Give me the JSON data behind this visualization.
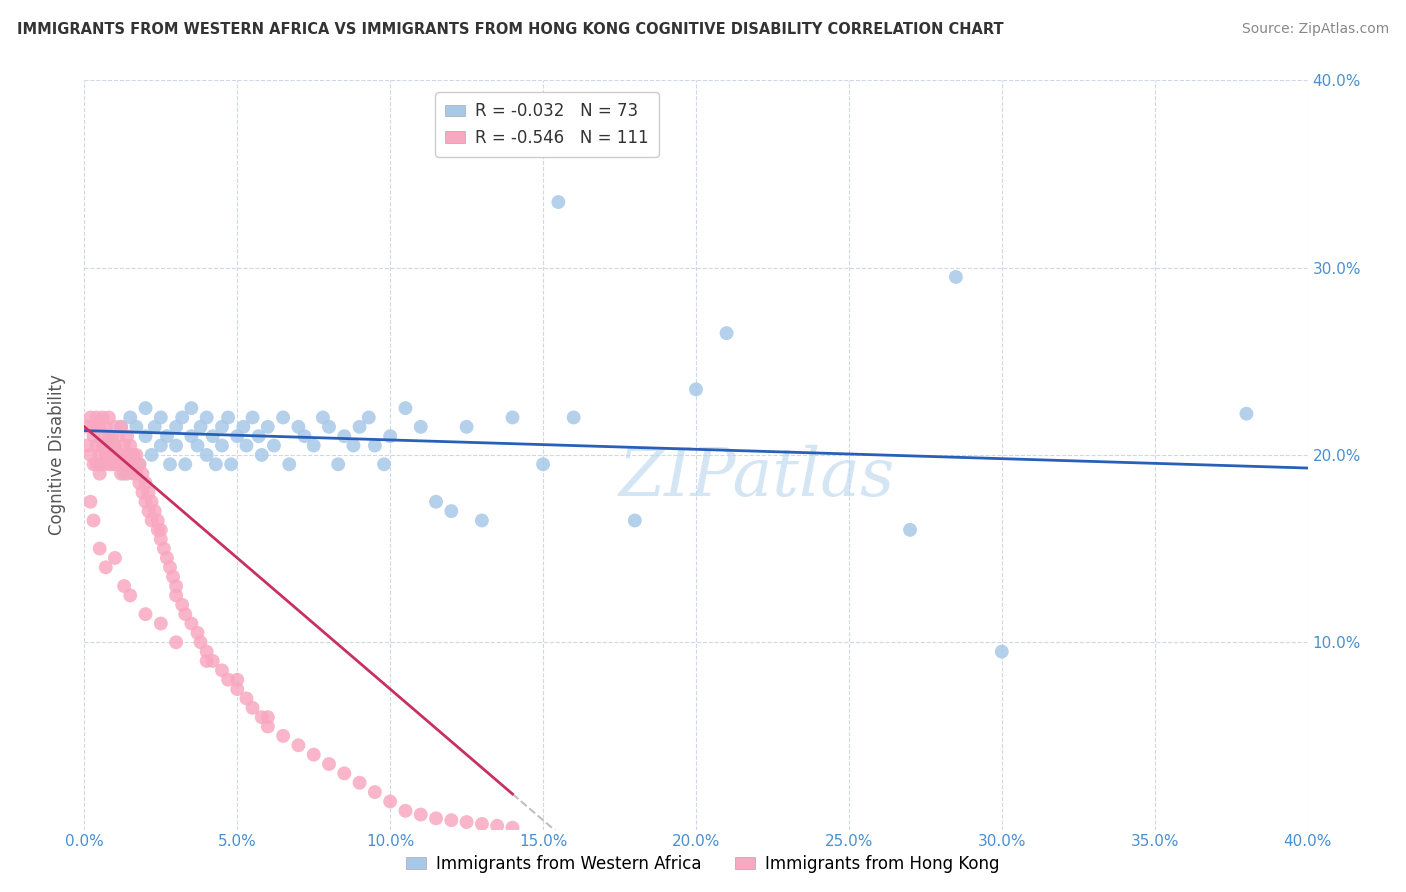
{
  "title": "IMMIGRANTS FROM WESTERN AFRICA VS IMMIGRANTS FROM HONG KONG COGNITIVE DISABILITY CORRELATION CHART",
  "source": "Source: ZipAtlas.com",
  "ylabel": "Cognitive Disability",
  "xlim": [
    0.0,
    0.4
  ],
  "ylim": [
    0.0,
    0.4
  ],
  "xtick_values": [
    0.0,
    0.05,
    0.1,
    0.15,
    0.2,
    0.25,
    0.3,
    0.35,
    0.4
  ],
  "ytick_values": [
    0.1,
    0.2,
    0.3,
    0.4
  ],
  "color_blue": "#a8c8e8",
  "color_pink": "#f8a8c0",
  "line_blue": "#2860b8",
  "line_pink": "#c83060",
  "line_gray": "#c0c0c0",
  "legend_r1": "R = -0.032",
  "legend_n1": "N = 73",
  "legend_r2": "R = -0.546",
  "legend_n2": "N = 111",
  "watermark": "ZIPatlas",
  "label1": "Immigrants from Western Africa",
  "label2": "Immigrants from Hong Kong",
  "blue_x": [
    0.005,
    0.008,
    0.01,
    0.012,
    0.013,
    0.015,
    0.015,
    0.017,
    0.018,
    0.02,
    0.02,
    0.022,
    0.023,
    0.025,
    0.025,
    0.027,
    0.028,
    0.03,
    0.03,
    0.032,
    0.033,
    0.035,
    0.035,
    0.037,
    0.038,
    0.04,
    0.04,
    0.042,
    0.043,
    0.045,
    0.045,
    0.047,
    0.048,
    0.05,
    0.052,
    0.053,
    0.055,
    0.057,
    0.058,
    0.06,
    0.062,
    0.065,
    0.067,
    0.07,
    0.072,
    0.075,
    0.078,
    0.08,
    0.083,
    0.085,
    0.088,
    0.09,
    0.093,
    0.095,
    0.098,
    0.1,
    0.105,
    0.11,
    0.115,
    0.12,
    0.125,
    0.13,
    0.14,
    0.15,
    0.16,
    0.18,
    0.2,
    0.21,
    0.27,
    0.3,
    0.155,
    0.285,
    0.38
  ],
  "blue_y": [
    0.195,
    0.21,
    0.205,
    0.215,
    0.19,
    0.22,
    0.2,
    0.215,
    0.195,
    0.21,
    0.225,
    0.2,
    0.215,
    0.205,
    0.22,
    0.21,
    0.195,
    0.215,
    0.205,
    0.22,
    0.195,
    0.21,
    0.225,
    0.205,
    0.215,
    0.2,
    0.22,
    0.21,
    0.195,
    0.215,
    0.205,
    0.22,
    0.195,
    0.21,
    0.215,
    0.205,
    0.22,
    0.21,
    0.2,
    0.215,
    0.205,
    0.22,
    0.195,
    0.215,
    0.21,
    0.205,
    0.22,
    0.215,
    0.195,
    0.21,
    0.205,
    0.215,
    0.22,
    0.205,
    0.195,
    0.21,
    0.225,
    0.215,
    0.175,
    0.17,
    0.215,
    0.165,
    0.22,
    0.195,
    0.22,
    0.165,
    0.235,
    0.265,
    0.16,
    0.095,
    0.335,
    0.295,
    0.222
  ],
  "pink_x": [
    0.001,
    0.001,
    0.002,
    0.002,
    0.003,
    0.003,
    0.003,
    0.004,
    0.004,
    0.004,
    0.005,
    0.005,
    0.005,
    0.006,
    0.006,
    0.006,
    0.007,
    0.007,
    0.007,
    0.008,
    0.008,
    0.008,
    0.009,
    0.009,
    0.009,
    0.01,
    0.01,
    0.01,
    0.011,
    0.011,
    0.011,
    0.012,
    0.012,
    0.012,
    0.013,
    0.013,
    0.013,
    0.014,
    0.014,
    0.014,
    0.015,
    0.015,
    0.016,
    0.016,
    0.016,
    0.017,
    0.017,
    0.018,
    0.018,
    0.019,
    0.019,
    0.02,
    0.02,
    0.021,
    0.021,
    0.022,
    0.022,
    0.023,
    0.024,
    0.024,
    0.025,
    0.025,
    0.026,
    0.027,
    0.028,
    0.029,
    0.03,
    0.03,
    0.032,
    0.033,
    0.035,
    0.037,
    0.038,
    0.04,
    0.042,
    0.045,
    0.047,
    0.05,
    0.053,
    0.055,
    0.058,
    0.06,
    0.065,
    0.07,
    0.075,
    0.08,
    0.085,
    0.09,
    0.095,
    0.1,
    0.105,
    0.11,
    0.115,
    0.12,
    0.125,
    0.13,
    0.135,
    0.14,
    0.002,
    0.003,
    0.005,
    0.007,
    0.01,
    0.013,
    0.015,
    0.02,
    0.025,
    0.03,
    0.04,
    0.05,
    0.06
  ],
  "pink_y": [
    0.215,
    0.205,
    0.22,
    0.2,
    0.215,
    0.195,
    0.21,
    0.205,
    0.22,
    0.195,
    0.2,
    0.215,
    0.19,
    0.205,
    0.22,
    0.195,
    0.21,
    0.2,
    0.215,
    0.195,
    0.205,
    0.22,
    0.195,
    0.21,
    0.2,
    0.205,
    0.215,
    0.195,
    0.2,
    0.21,
    0.195,
    0.2,
    0.215,
    0.19,
    0.2,
    0.205,
    0.195,
    0.2,
    0.21,
    0.19,
    0.195,
    0.205,
    0.19,
    0.2,
    0.195,
    0.19,
    0.2,
    0.195,
    0.185,
    0.19,
    0.18,
    0.185,
    0.175,
    0.18,
    0.17,
    0.175,
    0.165,
    0.17,
    0.16,
    0.165,
    0.155,
    0.16,
    0.15,
    0.145,
    0.14,
    0.135,
    0.13,
    0.125,
    0.12,
    0.115,
    0.11,
    0.105,
    0.1,
    0.095,
    0.09,
    0.085,
    0.08,
    0.075,
    0.07,
    0.065,
    0.06,
    0.055,
    0.05,
    0.045,
    0.04,
    0.035,
    0.03,
    0.025,
    0.02,
    0.015,
    0.01,
    0.008,
    0.006,
    0.005,
    0.004,
    0.003,
    0.002,
    0.001,
    0.175,
    0.165,
    0.15,
    0.14,
    0.145,
    0.13,
    0.125,
    0.115,
    0.11,
    0.1,
    0.09,
    0.08,
    0.06
  ]
}
